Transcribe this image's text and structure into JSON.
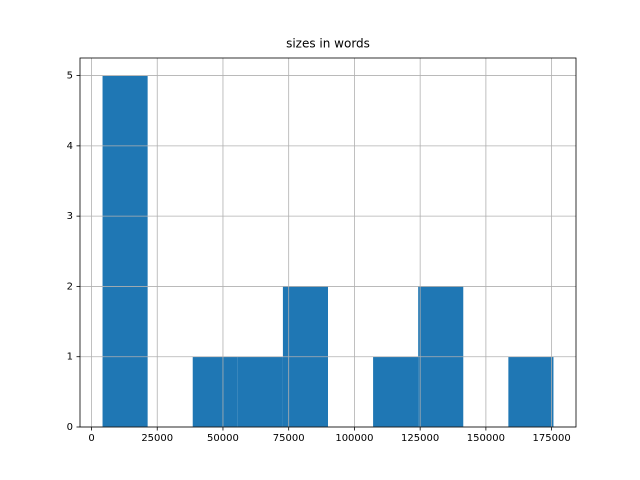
{
  "chart_data": {
    "type": "histogram",
    "title": "sizes in words",
    "bins": [
      4200,
      21350,
      38500,
      55650,
      72800,
      89950,
      107100,
      124250,
      141400,
      158550,
      175700
    ],
    "values": [
      5,
      0,
      1,
      1,
      2,
      0,
      1,
      2,
      0,
      1
    ],
    "color": "#1f77b4",
    "xlim": [
      -4375,
      184275
    ],
    "xticks": [
      0,
      25000,
      50000,
      75000,
      100000,
      125000,
      150000,
      175000
    ],
    "ylim": [
      0,
      5.25
    ],
    "yticks": [
      0,
      1,
      2,
      3,
      4,
      5
    ],
    "grid": true
  }
}
